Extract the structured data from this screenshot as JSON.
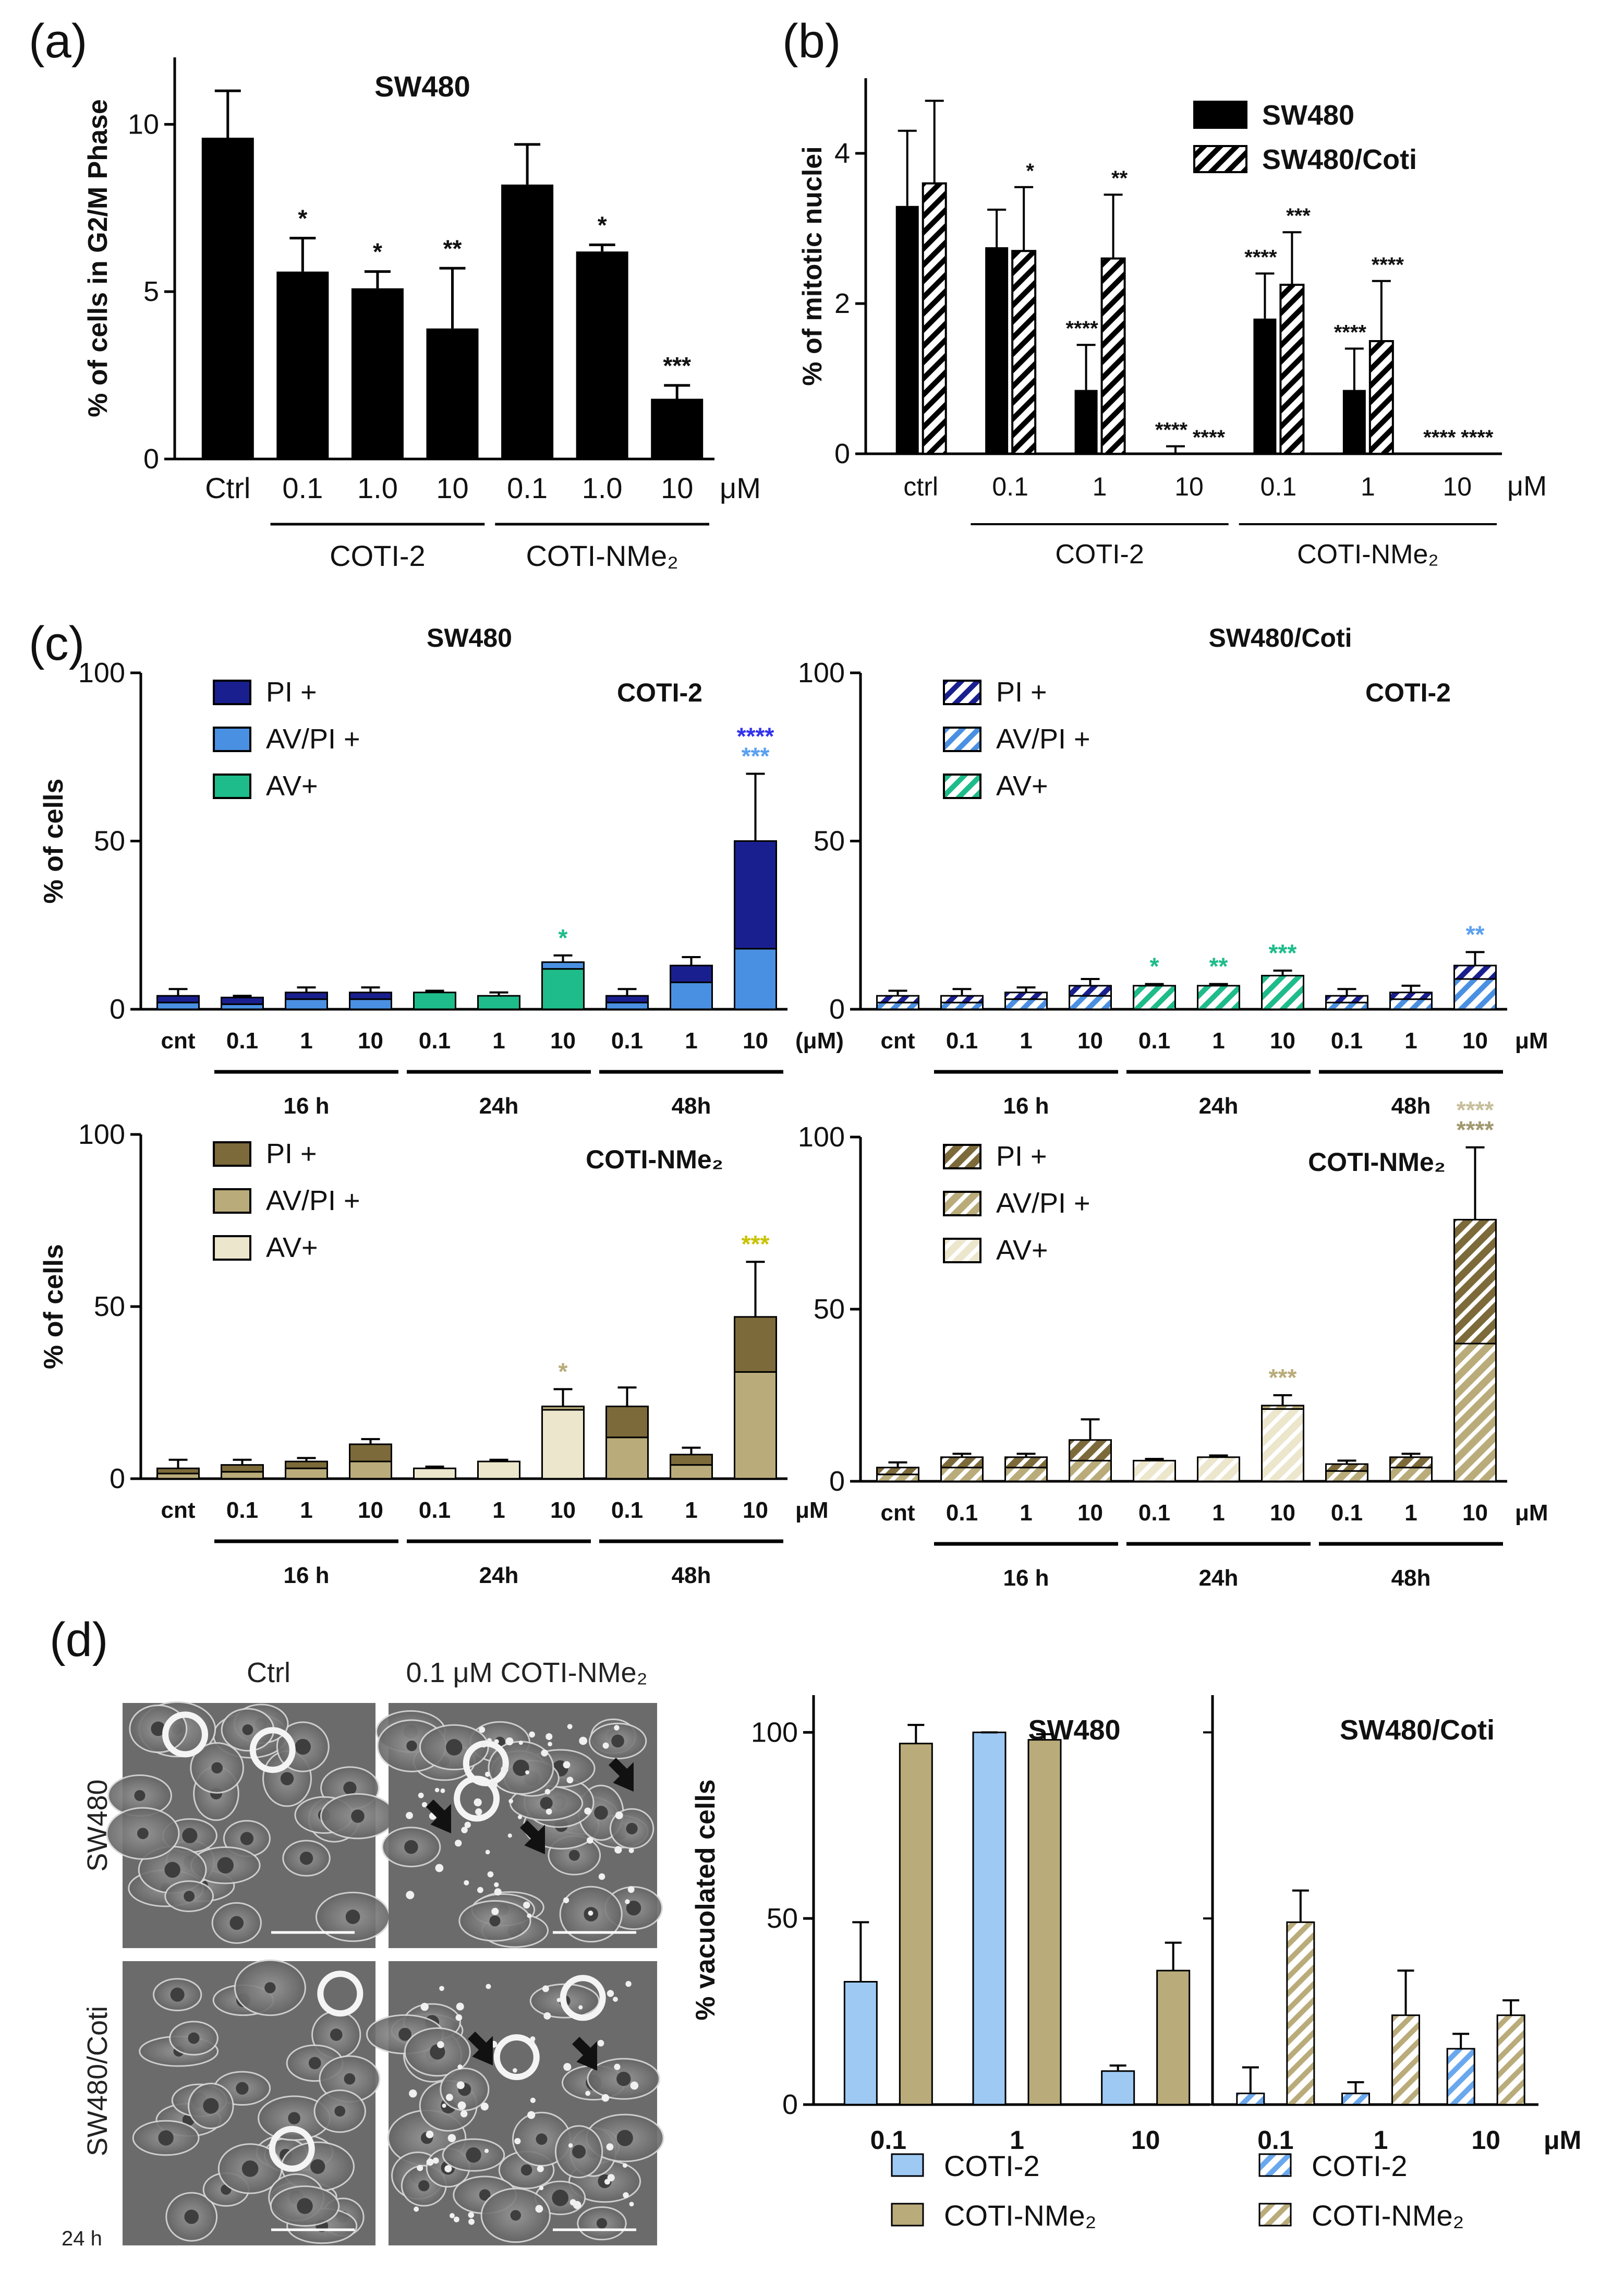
{
  "panel_letters": [
    "(a)",
    "(b)",
    "(c)",
    "(d)"
  ],
  "colors": {
    "black": "#000000",
    "dark_blue": "#1a1f8f",
    "light_blue": "#4a90e2",
    "green": "#1ebc8a",
    "dark_olive": "#7d6a3a",
    "olive": "#b9ac7a",
    "cream": "#ece6cc",
    "pale_blue": "#9ec9f3",
    "star_blue": "#3232ee",
    "star_green": "#1ebc8a",
    "star_yellow": "#c9c200",
    "star_tan": "#b9ac7a",
    "star_lightblue": "#5aa0f0"
  },
  "unit_um": "μM",
  "photos": {
    "col_ctrl": "Ctrl",
    "col_treated": "0.1 μM COTI-NMe₂",
    "row_parent": "SW480",
    "row_resistant": "SW480/Coti",
    "timepoint": "24 h"
  },
  "chart_data": [
    {
      "id": "a",
      "type": "bar",
      "title": "SW480",
      "ylabel": "% of cells in G2/M Phase",
      "ylim": [
        0,
        12
      ],
      "yticks": [
        "0",
        "5",
        "10"
      ],
      "categories": [
        "Ctrl",
        "0.1",
        "1.0",
        "10",
        "0.1",
        "1.0",
        "10"
      ],
      "unit": "μM",
      "values": [
        9.6,
        5.6,
        5.1,
        3.9,
        8.2,
        6.2,
        1.8
      ],
      "errors": [
        1.4,
        1.0,
        0.5,
        1.8,
        1.2,
        0.2,
        0.4
      ],
      "annotations": [
        "",
        "*",
        "*",
        "**",
        "",
        "*",
        "***"
      ],
      "groups": [
        {
          "label": "COTI-2",
          "from": 1,
          "to": 3
        },
        {
          "label": "COTI-NMe₂",
          "from": 4,
          "to": 6
        }
      ]
    },
    {
      "id": "b",
      "type": "bar",
      "ylabel": "% of mitotic nuclei",
      "ylim": [
        0,
        5
      ],
      "yticks": [
        "0",
        "2",
        "4"
      ],
      "categories": [
        "ctrl",
        "0.1",
        "1",
        "10",
        "0.1",
        "1",
        "10"
      ],
      "unit": "μM",
      "series": [
        {
          "name": "SW480",
          "pattern": "solid",
          "values": [
            3.3,
            2.75,
            0.85,
            0.0,
            1.8,
            0.85,
            0.0
          ],
          "errors": [
            1.0,
            0.5,
            0.6,
            0.1,
            0.6,
            0.55,
            0.0
          ],
          "annotations": [
            "",
            "",
            "****",
            "****",
            "****",
            "****",
            "****"
          ]
        },
        {
          "name": "SW480/Coti",
          "pattern": "hatched",
          "values": [
            3.6,
            2.7,
            2.6,
            0.0,
            2.25,
            1.5,
            0.0
          ],
          "errors": [
            1.1,
            0.85,
            0.85,
            0.0,
            0.7,
            0.8,
            0.0
          ],
          "annotations": [
            "",
            "*",
            "**",
            "****",
            "***",
            "****",
            "****"
          ]
        }
      ],
      "groups": [
        {
          "label": "COTI-2",
          "from": 1,
          "to": 3
        },
        {
          "label": "COTI-NMe₂",
          "from": 4,
          "to": 6
        }
      ]
    },
    {
      "id": "c1",
      "type": "stacked-bar",
      "title": "SW480",
      "compound": "COTI-2",
      "ylabel": "% of cells",
      "ylim": [
        0,
        100
      ],
      "yticks": [
        "0",
        "50",
        "100"
      ],
      "categories": [
        "cnt",
        "0.1",
        "1",
        "10",
        "0.1",
        "1",
        "10",
        "0.1",
        "1",
        "10"
      ],
      "unit": "(μM)",
      "hatched": false,
      "legend": [
        "PI +",
        "AV/PI +",
        "AV+"
      ],
      "stack_order": [
        "AV+",
        "AV/PI +",
        "PI +"
      ],
      "av": [
        0,
        0,
        0,
        0,
        5,
        4,
        12,
        0,
        0,
        0
      ],
      "avpi": [
        2,
        1.5,
        3,
        3,
        0,
        0,
        2,
        2,
        8,
        18
      ],
      "pi": [
        2,
        2,
        2,
        2,
        0,
        0,
        0,
        2,
        5,
        32
      ],
      "errors": [
        2,
        0.5,
        1.5,
        1.5,
        0.5,
        1,
        2,
        2,
        2.5,
        20
      ],
      "annotations": [
        {
          "index": 6,
          "lines": [
            {
              "text": "*",
              "color": "#1ebc8a"
            }
          ]
        },
        {
          "index": 9,
          "lines": [
            {
              "text": "***",
              "color": "#5aa0f0"
            },
            {
              "text": "****",
              "color": "#3232ee"
            }
          ]
        }
      ],
      "time_groups": [
        {
          "label": "16 h",
          "from": 1,
          "to": 3
        },
        {
          "label": "24h",
          "from": 4,
          "to": 6
        },
        {
          "label": "48h",
          "from": 7,
          "to": 9
        }
      ]
    },
    {
      "id": "c2",
      "type": "stacked-bar",
      "title": "SW480/Coti",
      "compound": "COTI-2",
      "ylim": [
        0,
        100
      ],
      "yticks": [
        "0",
        "50",
        "100"
      ],
      "categories": [
        "cnt",
        "0.1",
        "1",
        "10",
        "0.1",
        "1",
        "10",
        "0.1",
        "1",
        "10"
      ],
      "unit": "μM",
      "hatched": true,
      "legend": [
        "PI +",
        "AV/PI +",
        "AV+"
      ],
      "stack_order": [
        "AV+",
        "AV/PI +",
        "PI +"
      ],
      "av": [
        0,
        0,
        0,
        0,
        7,
        7,
        10,
        0,
        0,
        0
      ],
      "avpi": [
        2,
        2,
        3,
        4,
        0,
        0,
        0,
        2,
        3,
        9
      ],
      "pi": [
        2,
        2,
        2,
        3,
        0,
        0,
        0,
        2,
        2,
        4
      ],
      "errors": [
        1.5,
        2,
        1.5,
        2,
        0.5,
        0.5,
        1.5,
        2,
        2,
        4
      ],
      "annotations": [
        {
          "index": 4,
          "lines": [
            {
              "text": "*",
              "color": "#1ebc8a"
            }
          ]
        },
        {
          "index": 5,
          "lines": [
            {
              "text": "**",
              "color": "#1ebc8a"
            }
          ]
        },
        {
          "index": 6,
          "lines": [
            {
              "text": "***",
              "color": "#1ebc8a"
            }
          ]
        },
        {
          "index": 9,
          "lines": [
            {
              "text": "**",
              "color": "#5aa0f0"
            }
          ]
        }
      ],
      "time_groups": [
        {
          "label": "16 h",
          "from": 1,
          "to": 3
        },
        {
          "label": "24h",
          "from": 4,
          "to": 6
        },
        {
          "label": "48h",
          "from": 7,
          "to": 9
        }
      ]
    },
    {
      "id": "c3",
      "type": "stacked-bar",
      "compound": "COTI-NMe₂",
      "ylabel": "% of cells",
      "ylim": [
        0,
        100
      ],
      "yticks": [
        "0",
        "50",
        "100"
      ],
      "categories": [
        "cnt",
        "0.1",
        "1",
        "10",
        "0.1",
        "1",
        "10",
        "0.1",
        "1",
        "10"
      ],
      "unit": "μM",
      "hatched": false,
      "legend": [
        "PI +",
        "AV/PI +",
        "AV+"
      ],
      "stack_order": [
        "AV+",
        "AV/PI +",
        "PI +"
      ],
      "av": [
        0,
        0,
        0,
        0,
        3,
        5,
        20,
        0,
        0,
        0
      ],
      "avpi": [
        1.5,
        2,
        3,
        5,
        0,
        0,
        1,
        12,
        4,
        31
      ],
      "pi": [
        1.5,
        2,
        2,
        5,
        0,
        0,
        0,
        9,
        3,
        16
      ],
      "errors": [
        2.5,
        1.5,
        1,
        1.5,
        0.5,
        0.5,
        5,
        5.5,
        2,
        16
      ],
      "annotations": [
        {
          "index": 6,
          "lines": [
            {
              "text": "*",
              "color": "#b9ac7a"
            }
          ]
        },
        {
          "index": 9,
          "lines": [
            {
              "text": "***",
              "color": "#c9c200"
            }
          ]
        }
      ],
      "time_groups": [
        {
          "label": "16 h",
          "from": 1,
          "to": 3
        },
        {
          "label": "24h",
          "from": 4,
          "to": 6
        },
        {
          "label": "48h",
          "from": 7,
          "to": 9
        }
      ]
    },
    {
      "id": "c4",
      "type": "stacked-bar",
      "compound": "COTI-NMe₂",
      "ylim": [
        0,
        100
      ],
      "yticks": [
        "0",
        "50",
        "100"
      ],
      "categories": [
        "cnt",
        "0.1",
        "1",
        "10",
        "0.1",
        "1",
        "10",
        "0.1",
        "1",
        "10"
      ],
      "unit": "μM",
      "hatched": true,
      "legend": [
        "PI +",
        "AV/PI +",
        "AV+"
      ],
      "stack_order": [
        "AV+",
        "AV/PI +",
        "PI +"
      ],
      "av": [
        0,
        0,
        0,
        0,
        6,
        7,
        21,
        0,
        0,
        0
      ],
      "avpi": [
        2,
        4,
        4,
        6,
        0,
        0,
        1,
        3,
        4,
        40
      ],
      "pi": [
        2,
        3,
        3,
        6,
        0,
        0,
        0,
        2,
        3,
        36
      ],
      "errors": [
        1.5,
        1,
        1,
        6,
        0.5,
        0.5,
        3,
        1,
        1,
        21
      ],
      "annotations": [
        {
          "index": 6,
          "lines": [
            {
              "text": "***",
              "color": "#b9ac7a"
            }
          ]
        },
        {
          "index": 9,
          "lines": [
            {
              "text": "****",
              "color": "#a1996f"
            },
            {
              "text": "****",
              "color": "#c7bf9c"
            }
          ]
        }
      ],
      "time_groups": [
        {
          "label": "16 h",
          "from": 1,
          "to": 3
        },
        {
          "label": "24h",
          "from": 4,
          "to": 6
        },
        {
          "label": "48h",
          "from": 7,
          "to": 9
        }
      ]
    },
    {
      "id": "d1",
      "type": "bar",
      "title": "SW480",
      "ylabel": "% vacuolated cells",
      "ylim": [
        0,
        110
      ],
      "yticks": [
        "0",
        "50",
        "100"
      ],
      "categories": [
        "0.1",
        "1",
        "10"
      ],
      "series": [
        {
          "name": "COTI-2",
          "values": [
            33,
            100,
            9
          ],
          "errors": [
            16,
            0,
            1.5
          ]
        },
        {
          "name": "COTI-NMe₂",
          "values": [
            97,
            98,
            36
          ],
          "errors": [
            5,
            1.5,
            7.5
          ]
        }
      ]
    },
    {
      "id": "d2",
      "type": "bar",
      "title": "SW480/Coti",
      "ylim": [
        0,
        110
      ],
      "categories": [
        "0.1",
        "1",
        "10"
      ],
      "unit": "μM",
      "series": [
        {
          "name": "COTI-2",
          "values": [
            3,
            3,
            15
          ],
          "errors": [
            7,
            3,
            4
          ]
        },
        {
          "name": "COTI-NMe₂",
          "values": [
            49,
            24,
            24
          ],
          "errors": [
            8.5,
            12,
            4
          ]
        }
      ]
    }
  ]
}
